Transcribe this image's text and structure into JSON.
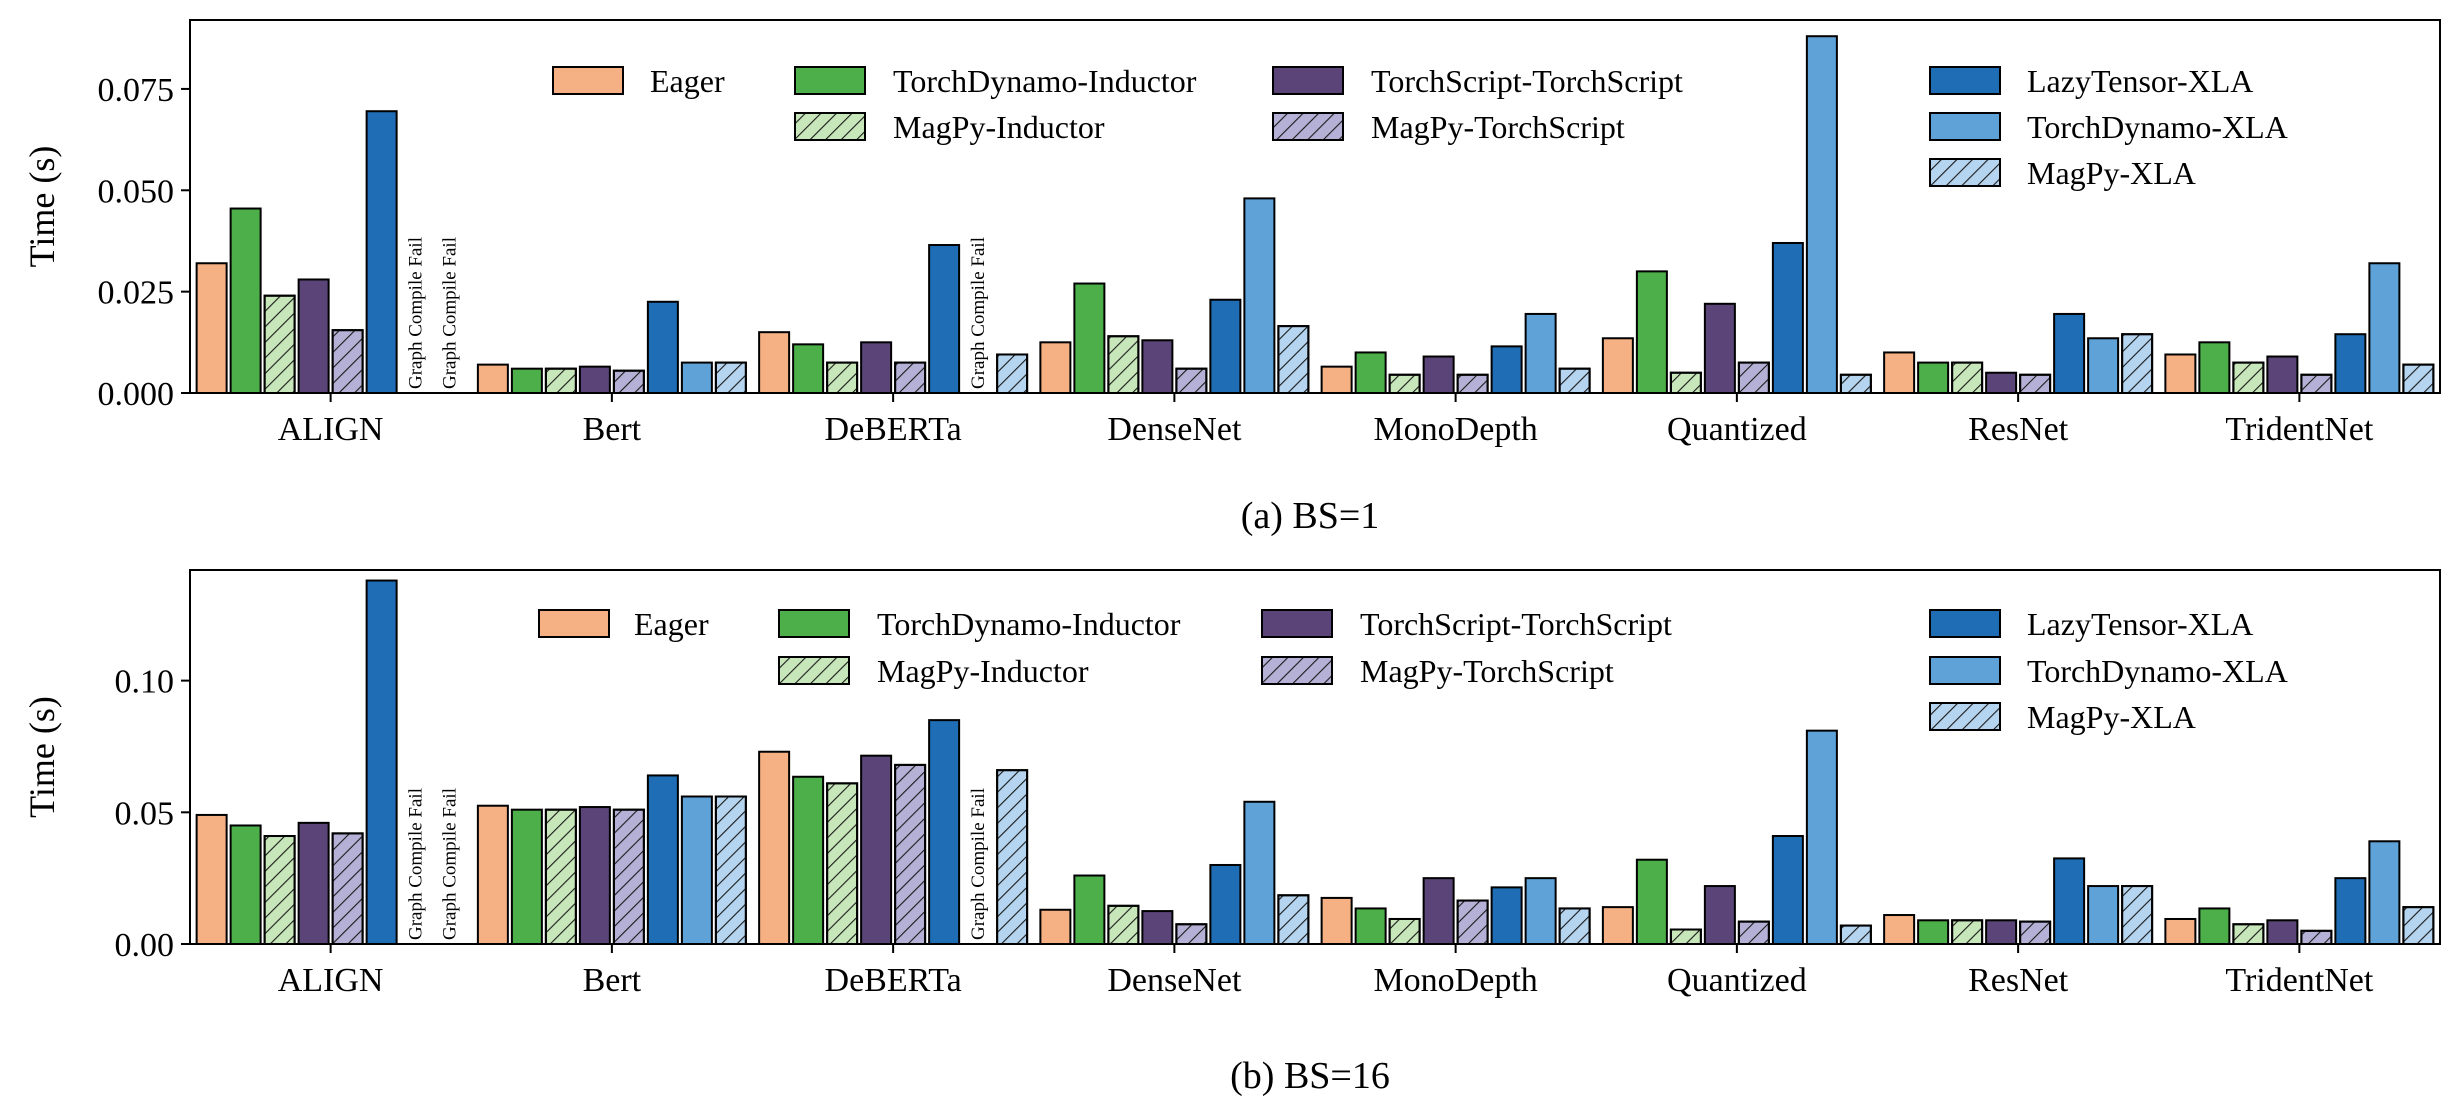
{
  "colors": {
    "Eager": "#f5b183",
    "TorchDynamo-Inductor": "#4daf4a",
    "MagPy-Inductor": "#c7e6b9",
    "TorchScript-TorchScript": "#5a4478",
    "MagPy-TorchScript": "#b4b0d6",
    "LazyTensor-XLA": "#1f6db4",
    "TorchDynamo-XLA": "#5ea2d8",
    "MagPy-XLA": "#b4d4ef"
  },
  "legend": [
    {
      "name": "Eager",
      "hatch": false
    },
    {
      "name": "TorchDynamo-Inductor",
      "hatch": false
    },
    {
      "name": "TorchScript-TorchScript",
      "hatch": false
    },
    {
      "name": "LazyTensor-XLA",
      "hatch": false
    },
    {
      "name": "MagPy-Inductor",
      "hatch": true
    },
    {
      "name": "MagPy-TorchScript",
      "hatch": true
    },
    {
      "name": "TorchDynamo-XLA",
      "hatch": false
    },
    {
      "name": "MagPy-XLA",
      "hatch": true
    }
  ],
  "chart_data": [
    {
      "type": "bar",
      "title": "(a) BS=1",
      "ylabel": "Time (s)",
      "ylim": [
        0,
        0.092
      ],
      "yticks": [
        "0.000",
        "0.025",
        "0.050",
        "0.075"
      ],
      "ytick_values": [
        0,
        0.025,
        0.05,
        0.075
      ],
      "categories": [
        "ALIGN",
        "Bert",
        "DeBERTa",
        "DenseNet",
        "MonoDepth",
        "Quantized",
        "ResNet",
        "TridentNet"
      ],
      "series": [
        {
          "name": "Eager",
          "values": [
            0.032,
            0.007,
            0.015,
            0.0125,
            0.0065,
            0.0135,
            0.01,
            0.0095
          ]
        },
        {
          "name": "TorchDynamo-Inductor",
          "values": [
            0.0455,
            0.006,
            0.012,
            0.027,
            0.01,
            0.03,
            0.0075,
            0.0125
          ]
        },
        {
          "name": "MagPy-Inductor",
          "values": [
            0.024,
            0.006,
            0.0075,
            0.014,
            0.0045,
            0.005,
            0.0075,
            0.0075
          ]
        },
        {
          "name": "TorchScript-TorchScript",
          "values": [
            0.028,
            0.0065,
            0.0125,
            0.013,
            0.009,
            0.022,
            0.005,
            0.009
          ]
        },
        {
          "name": "MagPy-TorchScript",
          "values": [
            0.0155,
            0.0055,
            0.0075,
            0.006,
            0.0045,
            0.0075,
            0.0045,
            0.0045
          ]
        },
        {
          "name": "LazyTensor-XLA",
          "values": [
            0.0695,
            0.0225,
            0.0365,
            0.023,
            0.0115,
            0.037,
            0.0195,
            0.0145
          ]
        },
        {
          "name": "TorchDynamo-XLA",
          "values": [
            null,
            0.0075,
            null,
            0.048,
            0.0195,
            0.088,
            0.0135,
            0.032
          ]
        },
        {
          "name": "MagPy-XLA",
          "values": [
            null,
            0.0075,
            0.0095,
            0.0165,
            0.006,
            0.0045,
            0.0145,
            0.007
          ]
        }
      ],
      "annotation_text": "Graph Compile Fail",
      "annotations": [
        {
          "category": "ALIGN",
          "series": "TorchDynamo-XLA"
        },
        {
          "category": "ALIGN",
          "series": "MagPy-XLA"
        },
        {
          "category": "DeBERTa",
          "series": "TorchDynamo-XLA"
        }
      ]
    },
    {
      "type": "bar",
      "title": "(b) BS=16",
      "ylabel": "Time (s)",
      "ylim": [
        0,
        0.142
      ],
      "yticks": [
        "0.00",
        "0.05",
        "0.10"
      ],
      "ytick_values": [
        0,
        0.05,
        0.1
      ],
      "categories": [
        "ALIGN",
        "Bert",
        "DeBERTa",
        "DenseNet",
        "MonoDepth",
        "Quantized",
        "ResNet",
        "TridentNet"
      ],
      "series": [
        {
          "name": "Eager",
          "values": [
            0.049,
            0.0525,
            0.073,
            0.013,
            0.0175,
            0.014,
            0.011,
            0.0095
          ]
        },
        {
          "name": "TorchDynamo-Inductor",
          "values": [
            0.045,
            0.051,
            0.0635,
            0.026,
            0.0135,
            0.032,
            0.009,
            0.0135
          ]
        },
        {
          "name": "MagPy-Inductor",
          "values": [
            0.041,
            0.051,
            0.061,
            0.0145,
            0.0095,
            0.0055,
            0.009,
            0.0075
          ]
        },
        {
          "name": "TorchScript-TorchScript",
          "values": [
            0.046,
            0.052,
            0.0715,
            0.0125,
            0.025,
            0.022,
            0.009,
            0.009
          ]
        },
        {
          "name": "MagPy-TorchScript",
          "values": [
            0.042,
            0.051,
            0.068,
            0.0075,
            0.0165,
            0.0085,
            0.0085,
            0.005
          ]
        },
        {
          "name": "LazyTensor-XLA",
          "values": [
            0.138,
            0.064,
            0.085,
            0.03,
            0.0215,
            0.041,
            0.0325,
            0.025
          ]
        },
        {
          "name": "TorchDynamo-XLA",
          "values": [
            null,
            0.056,
            null,
            0.054,
            0.025,
            0.081,
            0.022,
            0.039
          ]
        },
        {
          "name": "MagPy-XLA",
          "values": [
            null,
            0.056,
            0.066,
            0.0185,
            0.0135,
            0.007,
            0.022,
            0.014
          ]
        }
      ],
      "annotation_text": "Graph Compile Fail",
      "annotations": [
        {
          "category": "ALIGN",
          "series": "TorchDynamo-XLA"
        },
        {
          "category": "ALIGN",
          "series": "MagPy-XLA"
        },
        {
          "category": "DeBERTa",
          "series": "TorchDynamo-XLA"
        }
      ]
    }
  ]
}
